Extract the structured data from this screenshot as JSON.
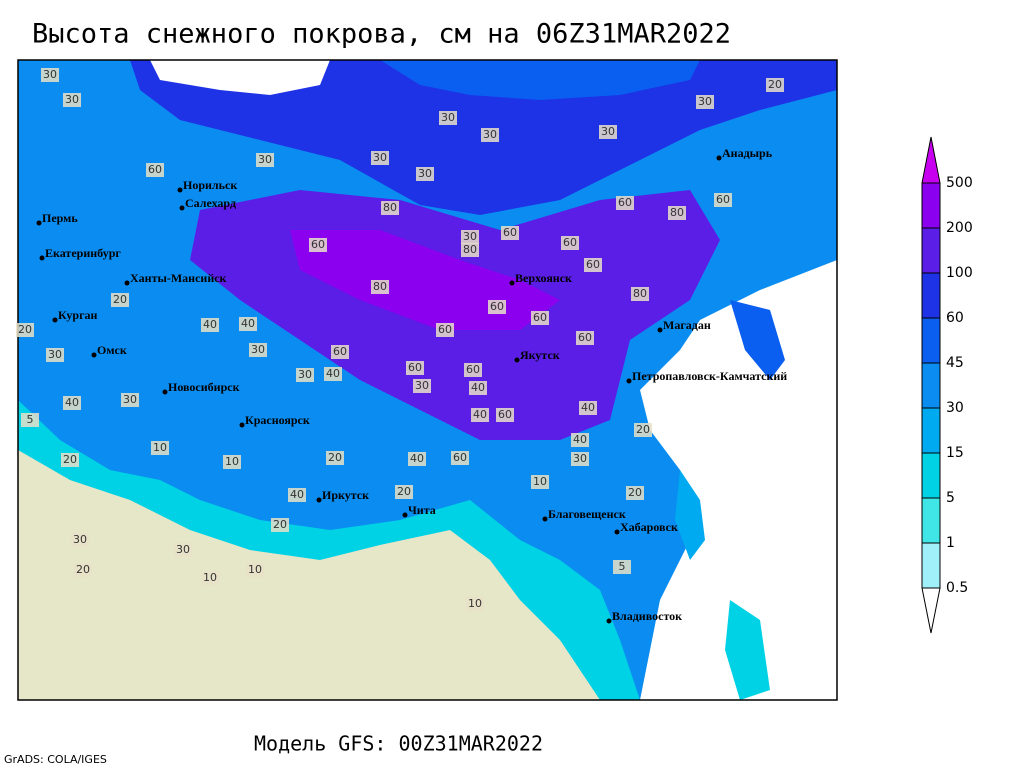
{
  "title": "Высота снежного покрова, см на 06Z31MAR2022",
  "footer": "Модель GFS: 00Z31MAR2022",
  "credit": "GrADS: COLA/IGES",
  "legend": {
    "levels": [
      0.5,
      1,
      5,
      15,
      30,
      45,
      60,
      100,
      200,
      500
    ],
    "colors": [
      "#ffffff",
      "#a0f0fa",
      "#40e6e6",
      "#00d2e6",
      "#00aaf0",
      "#0a8cf0",
      "#0a5ef0",
      "#1e32e6",
      "#5a1ee6",
      "#8c00f0",
      "#c800f0"
    ]
  },
  "cities": [
    "Норильск",
    "Салехард",
    "Пермь",
    "Екатеринбург",
    "Ханты-Мансийск",
    "Курган",
    "Омск",
    "Новосибирск",
    "Красноярск",
    "Иркутск",
    "Чита",
    "Верхоянск",
    "Якутск",
    "Магадан",
    "Анадырь",
    "Петропавловск-Камчатский",
    "Благовещенск",
    "Хабаровск",
    "Владивосток"
  ],
  "contour_labels": [
    30,
    30,
    30,
    30,
    30,
    30,
    20,
    60,
    30,
    30,
    30,
    80,
    30,
    60,
    60,
    60,
    80,
    60,
    60,
    80,
    80,
    60,
    80,
    60,
    60,
    60,
    60,
    60,
    60,
    60,
    40,
    30,
    30,
    40,
    40,
    40,
    30,
    20,
    30,
    40,
    20,
    40,
    40,
    30,
    20,
    30,
    10,
    20,
    20,
    40,
    60,
    10,
    20,
    20,
    40,
    20,
    10,
    5,
    30,
    30,
    10,
    10,
    20,
    10,
    5,
    40,
    60
  ]
}
